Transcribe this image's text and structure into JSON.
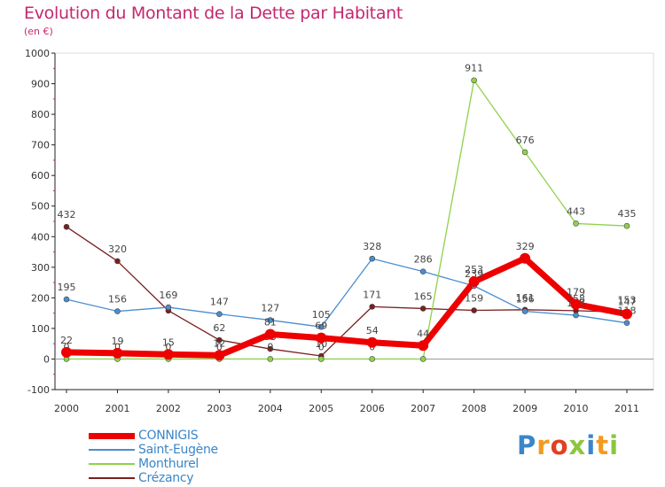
{
  "title": "Evolution du Montant de la Dette par Habitant",
  "subtitle": "(en €)",
  "logo": {
    "text": "Proxiti",
    "letters": [
      "P",
      "r",
      "o",
      "x",
      "i",
      "t",
      "i"
    ],
    "colors": [
      "#3a86c8",
      "#f39a1e",
      "#e2401f",
      "#8cc63f",
      "#3a86c8",
      "#f39a1e",
      "#8cc63f"
    ]
  },
  "chart_data": {
    "type": "line",
    "title": "Evolution du Montant de la Dette par Habitant",
    "ylabel": "(en €)",
    "xlabel": "",
    "categories": [
      "2000",
      "2001",
      "2002",
      "2003",
      "2004",
      "2005",
      "2006",
      "2007",
      "2008",
      "2009",
      "2010",
      "2011"
    ],
    "ylim": [
      -100,
      1000
    ],
    "yticks": [
      -100,
      0,
      100,
      200,
      300,
      400,
      500,
      600,
      700,
      800,
      900,
      1000
    ],
    "ytick_labels": [
      "-100",
      "0",
      "100",
      "200",
      "300",
      "400",
      "500",
      "600",
      "700",
      "800",
      "900",
      "1000"
    ],
    "grid": false,
    "legend_position": "bottom-left",
    "series": [
      {
        "name": "Crézancy",
        "color": "#7a1f1f",
        "values": [
          432,
          320,
          158,
          62,
          33,
          10,
          171,
          165,
          159,
          161,
          158,
          153
        ],
        "labels": [
          "432",
          "320",
          "",
          "62",
          "33",
          "10",
          "171",
          "165",
          "159",
          "161",
          "158",
          "153"
        ]
      },
      {
        "name": "Saint-Eugène",
        "color": "#4a8ed0",
        "values": [
          195,
          156,
          169,
          147,
          127,
          105,
          328,
          286,
          239,
          156,
          143,
          118
        ],
        "labels": [
          "195",
          "156",
          "169",
          "147",
          "127",
          "105",
          "328",
          "286",
          "239",
          "156",
          "143",
          "118"
        ]
      },
      {
        "name": "Monthurel",
        "color": "#8ed24a",
        "values": [
          0,
          0,
          0,
          0,
          0,
          0,
          0,
          0,
          911,
          676,
          443,
          435
        ],
        "labels": [
          "0",
          "0",
          "0",
          "0",
          "0",
          "0",
          "0",
          "0",
          "911",
          "676",
          "443",
          "435"
        ]
      },
      {
        "name": "CONNIGIS",
        "color": "#ee0000",
        "values": [
          22,
          19,
          15,
          12,
          81,
          69,
          54,
          44,
          253,
          329,
          179,
          147
        ],
        "labels": [
          "22",
          "19",
          "15",
          "12",
          "81",
          "69",
          "54",
          "44",
          "253",
          "329",
          "179",
          "147"
        ]
      }
    ],
    "legend_order": [
      "CONNIGIS",
      "Saint-Eugène",
      "Monthurel",
      "Crézancy"
    ]
  }
}
